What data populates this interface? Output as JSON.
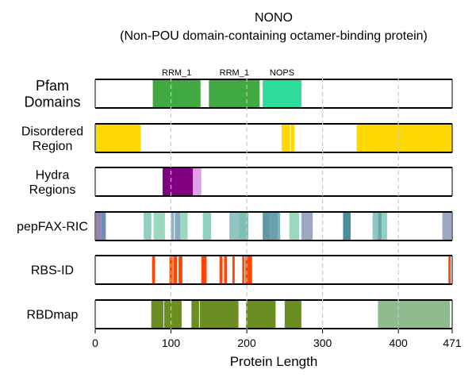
{
  "chart_data": {
    "type": "feature-track",
    "title": "NONO",
    "subtitle": "(Non-POU domain-containing octamer-binding protein)",
    "xlabel": "Protein Length",
    "xlim": [
      0,
      471
    ],
    "xticks": [
      0,
      100,
      200,
      300,
      400,
      471
    ],
    "grid_x": [
      100,
      200,
      300,
      400
    ],
    "tracks": [
      {
        "label": [
          "Pfam",
          "Domains"
        ],
        "segments": [
          {
            "start": 76,
            "end": 139,
            "color": "#2ca02c",
            "opacity": 0.9,
            "name": "RRM_1"
          },
          {
            "start": 150,
            "end": 217,
            "color": "#2ca02c",
            "opacity": 0.9,
            "name": "RRM_1"
          },
          {
            "start": 221,
            "end": 272,
            "color": "#2ddc9a",
            "opacity": 1.0,
            "name": "NOPS"
          }
        ]
      },
      {
        "label": [
          "Disordered",
          "Region"
        ],
        "segments": [
          {
            "start": 1,
            "end": 60,
            "color": "#ffd700",
            "opacity": 1.0
          },
          {
            "start": 246,
            "end": 257,
            "color": "#ffd700",
            "opacity": 1.0
          },
          {
            "start": 258,
            "end": 263,
            "color": "#ffd700",
            "opacity": 1.0
          },
          {
            "start": 345,
            "end": 471,
            "color": "#ffd700",
            "opacity": 1.0
          }
        ]
      },
      {
        "label": [
          "Hydra",
          "Regions"
        ],
        "segments": [
          {
            "start": 89,
            "end": 129,
            "color": "#800080",
            "opacity": 1.0
          },
          {
            "start": 129,
            "end": 140,
            "color": "#e0a0e8",
            "opacity": 1.0
          }
        ]
      },
      {
        "label": [
          "pepFAX-RIC"
        ],
        "segments": [
          {
            "start": 1,
            "end": 8,
            "color": "#9a7fb0",
            "opacity": 1.0
          },
          {
            "start": 8,
            "end": 14,
            "color": "#6f8fb3",
            "opacity": 1.0
          },
          {
            "start": 64,
            "end": 74,
            "color": "#8fd0c0",
            "opacity": 1.0
          },
          {
            "start": 77,
            "end": 92,
            "color": "#9ad9bf",
            "opacity": 1.0
          },
          {
            "start": 100,
            "end": 104,
            "color": "#8fb4c7",
            "opacity": 1.0
          },
          {
            "start": 105,
            "end": 112,
            "color": "#8aa8c0",
            "opacity": 1.0
          },
          {
            "start": 112,
            "end": 122,
            "color": "#9ad9bf",
            "opacity": 1.0
          },
          {
            "start": 142,
            "end": 153,
            "color": "#8fd0c0",
            "opacity": 1.0
          },
          {
            "start": 177,
            "end": 190,
            "color": "#8fc5c2",
            "opacity": 1.0
          },
          {
            "start": 190,
            "end": 202,
            "color": "#7fbfb5",
            "opacity": 1.0
          },
          {
            "start": 221,
            "end": 231,
            "color": "#5f99a8",
            "opacity": 1.0
          },
          {
            "start": 231,
            "end": 241,
            "color": "#6a9fb0",
            "opacity": 1.0
          },
          {
            "start": 241,
            "end": 244,
            "color": "#76b3b0",
            "opacity": 1.0
          },
          {
            "start": 256,
            "end": 269,
            "color": "#9ad9bf",
            "opacity": 1.0
          },
          {
            "start": 272,
            "end": 287,
            "color": "#9aa8c3",
            "opacity": 1.0
          },
          {
            "start": 327,
            "end": 337,
            "color": "#4a8f9e",
            "opacity": 1.0
          },
          {
            "start": 366,
            "end": 373,
            "color": "#8fc5c2",
            "opacity": 1.0
          },
          {
            "start": 373,
            "end": 378,
            "color": "#6aa8a8",
            "opacity": 1.0
          },
          {
            "start": 378,
            "end": 385,
            "color": "#8fd0c0",
            "opacity": 1.0
          },
          {
            "start": 458,
            "end": 470,
            "color": "#9aa8c3",
            "opacity": 1.0
          }
        ]
      },
      {
        "label": [
          "RBS-ID"
        ],
        "segments": [
          {
            "start": 75,
            "end": 79,
            "color": "#ff4500",
            "opacity": 1.0
          },
          {
            "start": 98,
            "end": 102,
            "color": "#ff4500",
            "opacity": 1.0
          },
          {
            "start": 103,
            "end": 108,
            "color": "#ff4500",
            "opacity": 1.0
          },
          {
            "start": 110,
            "end": 115,
            "color": "#ff4500",
            "opacity": 1.0
          },
          {
            "start": 140,
            "end": 147,
            "color": "#ff4500",
            "opacity": 1.0
          },
          {
            "start": 164,
            "end": 168,
            "color": "#ff4500",
            "opacity": 1.0
          },
          {
            "start": 170,
            "end": 174,
            "color": "#ff4500",
            "opacity": 1.0
          },
          {
            "start": 181,
            "end": 184,
            "color": "#ff4500",
            "opacity": 1.0
          },
          {
            "start": 194,
            "end": 197,
            "color": "#ff4500",
            "opacity": 1.0
          },
          {
            "start": 198,
            "end": 207,
            "color": "#ff4500",
            "opacity": 1.0
          },
          {
            "start": 466,
            "end": 469,
            "color": "#ff4500",
            "opacity": 1.0
          }
        ]
      },
      {
        "label": [
          "RBDmap"
        ],
        "segments": [
          {
            "start": 74,
            "end": 90,
            "color": "#6b8e23",
            "opacity": 1.0
          },
          {
            "start": 91,
            "end": 114,
            "color": "#6b8e23",
            "opacity": 1.0
          },
          {
            "start": 127,
            "end": 137,
            "color": "#6b8e23",
            "opacity": 1.0
          },
          {
            "start": 138,
            "end": 189,
            "color": "#6b8e23",
            "opacity": 1.0
          },
          {
            "start": 199,
            "end": 238,
            "color": "#6b8e23",
            "opacity": 1.0
          },
          {
            "start": 250,
            "end": 272,
            "color": "#6b8e23",
            "opacity": 1.0
          },
          {
            "start": 373,
            "end": 468,
            "color": "#8fbc8f",
            "opacity": 1.0
          }
        ]
      }
    ]
  }
}
